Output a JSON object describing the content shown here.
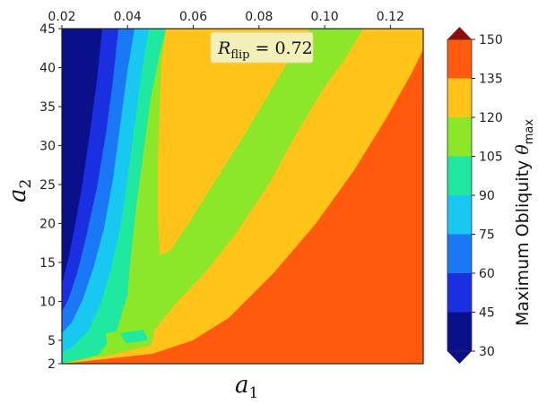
{
  "chart_data": {
    "type": "heatmap",
    "title": "",
    "annotation": {
      "symbol": "R",
      "subscript": "flip",
      "rest": " = 0.72"
    },
    "xlabel": {
      "symbol": "a",
      "subscript": "1"
    },
    "ylabel": {
      "symbol": "a",
      "subscript": "2"
    },
    "xlim": [
      0.02,
      0.13
    ],
    "ylim": [
      2,
      45
    ],
    "x_ticks": [
      "0.02",
      "0.04",
      "0.06",
      "0.08",
      "0.10",
      "0.12"
    ],
    "y_ticks": [
      "2",
      "5",
      "10",
      "15",
      "20",
      "25",
      "30",
      "35",
      "40",
      "45"
    ],
    "colorbar": {
      "label": "Maximum Obliquity",
      "symbol": "θ",
      "subscript": "max",
      "ticks": [
        "30",
        "45",
        "60",
        "75",
        "90",
        "105",
        "120",
        "135",
        "150"
      ],
      "levels": [
        30,
        45,
        60,
        75,
        90,
        105,
        120,
        135,
        150
      ],
      "colors": [
        "#0a0f8a",
        "#1a2fe0",
        "#1a78f5",
        "#19c8f0",
        "#20e8a0",
        "#8ce62a",
        "#ffc31a",
        "#ff5a0e",
        "#c81c0a"
      ]
    },
    "region_levels_note": "filled contour bands of maximum obliquity over a1 (x) and a2 (y)"
  }
}
